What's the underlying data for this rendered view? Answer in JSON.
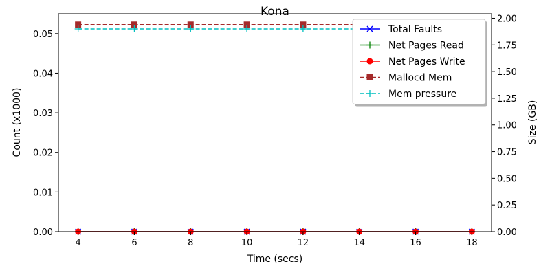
{
  "chart_data": {
    "type": "line",
    "title": "Kona",
    "xlabel": "Time (secs)",
    "ylabel_left": "Count (x1000)",
    "ylabel_right": "Size (GB)",
    "x": [
      4,
      6,
      8,
      10,
      12,
      14,
      16,
      18
    ],
    "xlim": [
      3.3,
      18.7
    ],
    "xticks": [
      4,
      6,
      8,
      10,
      12,
      14,
      16,
      18
    ],
    "ylim_left": [
      0,
      0.055
    ],
    "yticks_left": [
      0.0,
      0.01,
      0.02,
      0.03,
      0.04,
      0.05
    ],
    "ylim_right": [
      0,
      2.0417
    ],
    "yticks_right": [
      0.0,
      0.25,
      0.5,
      0.75,
      1.0,
      1.25,
      1.5,
      1.75,
      2.0
    ],
    "grid": false,
    "legend_position": "top-right",
    "series": [
      {
        "name": "Total Faults",
        "axis": "left",
        "color": "#0000ff",
        "linestyle": "solid",
        "marker": "x",
        "values": [
          0,
          0,
          0,
          0,
          0,
          0,
          0,
          0
        ]
      },
      {
        "name": "Net Pages Read",
        "axis": "left",
        "color": "#008000",
        "linestyle": "solid",
        "marker": "+",
        "values": [
          0,
          0,
          0,
          0,
          0,
          0,
          0,
          0
        ]
      },
      {
        "name": "Net Pages Write",
        "axis": "left",
        "color": "#ff0000",
        "linestyle": "solid",
        "marker": "o",
        "values": [
          0,
          0,
          0,
          0,
          0,
          0,
          0,
          0
        ]
      },
      {
        "name": "Mallocd Mem",
        "axis": "right",
        "color": "#a52a2a",
        "linestyle": "dashed",
        "marker": "s",
        "values": [
          1.94,
          1.94,
          1.94,
          1.94,
          1.94,
          1.94,
          1.94,
          1.94
        ]
      },
      {
        "name": "Mem pressure",
        "axis": "right",
        "color": "#00bfbf",
        "linestyle": "dashed",
        "marker": "+",
        "values": [
          1.9,
          1.9,
          1.9,
          1.9,
          1.9,
          1.9,
          1.9,
          1.9
        ]
      }
    ]
  }
}
